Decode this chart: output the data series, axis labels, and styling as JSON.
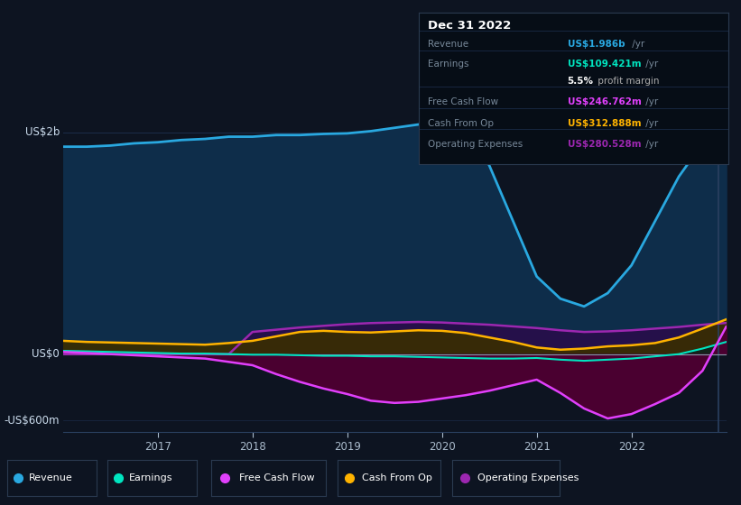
{
  "bg_color": "#0d1421",
  "plot_bg_color": "#0d1421",
  "grid_color": "#1e3050",
  "title_box": {
    "date": "Dec 31 2022",
    "rows": [
      {
        "label": "Revenue",
        "value": "US$1.986b",
        "suffix": " /yr",
        "value_color": "#29a8e0"
      },
      {
        "label": "Earnings",
        "value": "US$109.421m",
        "suffix": " /yr",
        "value_color": "#00e5c0"
      },
      {
        "label": "",
        "value": "5.5%",
        "suffix": " profit margin",
        "value_color": "#ffffff",
        "suffix_color": "#aaaaaa"
      },
      {
        "label": "Free Cash Flow",
        "value": "US$246.762m",
        "suffix": " /yr",
        "value_color": "#e040fb"
      },
      {
        "label": "Cash From Op",
        "value": "US$312.888m",
        "suffix": " /yr",
        "value_color": "#ffb300"
      },
      {
        "label": "Operating Expenses",
        "value": "US$280.528m",
        "suffix": " /yr",
        "value_color": "#9c27b0"
      }
    ]
  },
  "x_years": [
    2016.0,
    2016.25,
    2016.5,
    2016.75,
    2017.0,
    2017.25,
    2017.5,
    2017.75,
    2018.0,
    2018.25,
    2018.5,
    2018.75,
    2019.0,
    2019.25,
    2019.5,
    2019.75,
    2020.0,
    2020.25,
    2020.5,
    2020.75,
    2021.0,
    2021.25,
    2021.5,
    2021.75,
    2022.0,
    2022.25,
    2022.5,
    2022.75,
    2023.0
  ],
  "revenue": [
    1870,
    1870,
    1880,
    1900,
    1910,
    1930,
    1940,
    1960,
    1960,
    1975,
    1975,
    1985,
    1990,
    2010,
    2040,
    2070,
    2090,
    2050,
    1700,
    1200,
    700,
    500,
    430,
    550,
    800,
    1200,
    1600,
    1900,
    1986
  ],
  "earnings": [
    30,
    25,
    20,
    15,
    10,
    5,
    5,
    0,
    -5,
    -5,
    -10,
    -15,
    -15,
    -20,
    -20,
    -25,
    -30,
    -35,
    -40,
    -40,
    -35,
    -50,
    -60,
    -50,
    -40,
    -20,
    0,
    50,
    110
  ],
  "free_cash_flow": [
    20,
    10,
    0,
    -10,
    -20,
    -30,
    -40,
    -70,
    -100,
    -180,
    -250,
    -310,
    -360,
    -420,
    -440,
    -430,
    -400,
    -370,
    -330,
    -280,
    -230,
    -350,
    -490,
    -580,
    -540,
    -450,
    -350,
    -150,
    247
  ],
  "cash_from_op": [
    120,
    110,
    105,
    100,
    95,
    90,
    85,
    100,
    120,
    160,
    200,
    210,
    200,
    195,
    205,
    215,
    210,
    190,
    150,
    110,
    60,
    40,
    50,
    70,
    80,
    100,
    150,
    230,
    313
  ],
  "operating_expenses": [
    0,
    0,
    0,
    0,
    0,
    0,
    0,
    0,
    200,
    220,
    240,
    255,
    270,
    280,
    285,
    290,
    285,
    275,
    265,
    250,
    235,
    215,
    200,
    205,
    215,
    230,
    245,
    265,
    281
  ],
  "revenue_color": "#29a8e0",
  "earnings_color": "#00e5c0",
  "fcf_color": "#e040fb",
  "cashop_color": "#ffb300",
  "opex_color": "#9c27b0",
  "revenue_fill_color": "#0e2d4a",
  "fcf_fill_color": "#4a0030",
  "cashop_fill_color": "#3a2d00",
  "opex_fill_color": "#25104a",
  "earnings_fill_color": "#0a2020",
  "ylim_min": -700,
  "ylim_max": 2350,
  "y_top_val": 2000,
  "y_zero_val": 0,
  "y_bottom_val": -600,
  "ylabel_top": "US$2b",
  "ylabel_zero": "US$0",
  "ylabel_bottom": "-US$600m",
  "xlabel_ticks": [
    2017,
    2018,
    2019,
    2020,
    2021,
    2022
  ],
  "legend_items": [
    {
      "label": "Revenue",
      "color": "#29a8e0"
    },
    {
      "label": "Earnings",
      "color": "#00e5c0"
    },
    {
      "label": "Free Cash Flow",
      "color": "#e040fb"
    },
    {
      "label": "Cash From Op",
      "color": "#ffb300"
    },
    {
      "label": "Operating Expenses",
      "color": "#9c27b0"
    }
  ],
  "vline_x": 2022.92,
  "vline_color": "#2a4060"
}
